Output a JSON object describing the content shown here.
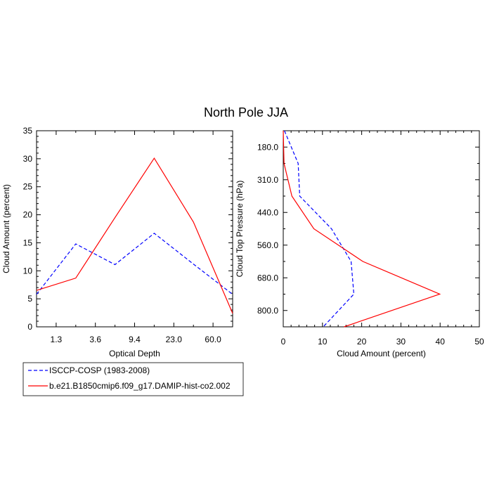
{
  "title": "North Pole JJA",
  "chart_data": [
    {
      "type": "line",
      "xlabel": "Optical Depth",
      "ylabel": "Cloud Amount (percent)",
      "x_tick_labels": [
        "1.3",
        "3.6",
        "9.4",
        "23.0",
        "60.0"
      ],
      "y_ticks": [
        0,
        5,
        10,
        15,
        20,
        25,
        30,
        35
      ],
      "ylim": [
        0,
        35
      ],
      "series": [
        {
          "name": "ISCCP-COSP (1983-2008)",
          "color": "#0000ff",
          "dash": "dashed",
          "values": [
            5.8,
            14.8,
            11.1,
            16.7,
            11.2,
            5.8
          ]
        },
        {
          "name": "b.e21.B1850cmip6.f09_g17.DAMIP-hist-co2.002",
          "color": "#ff0000",
          "dash": "solid",
          "values": [
            6.5,
            8.7,
            19.5,
            30.1,
            18.7,
            2.4
          ]
        }
      ]
    },
    {
      "type": "line",
      "xlabel": "Cloud Amount (percent)",
      "ylabel": "Cloud Top Pressure (hPa)",
      "x_ticks": [
        0,
        10,
        20,
        30,
        40,
        50
      ],
      "xlim": [
        0,
        50
      ],
      "y_tick_labels": [
        "180.0",
        "310.0",
        "440.0",
        "560.0",
        "680.0",
        "800.0"
      ],
      "series": [
        {
          "name": "ISCCP-COSP (1983-2008)",
          "color": "#0000ff",
          "dash": "dashed",
          "values": [
            0.3,
            3.8,
            4.2,
            12.3,
            17.3,
            18.0,
            10.2
          ]
        },
        {
          "name": "b.e21.B1850cmip6.f09_g17.DAMIP-hist-co2.002",
          "color": "#ff0000",
          "dash": "solid",
          "values": [
            0.0,
            0.2,
            2.2,
            7.8,
            20.3,
            39.9,
            15.5
          ]
        }
      ]
    }
  ],
  "legend": {
    "entries": [
      {
        "label": "ISCCP-COSP (1983-2008)",
        "color": "#0000ff",
        "dash": "dashed"
      },
      {
        "label": "b.e21.B1850cmip6.f09_g17.DAMIP-hist-co2.002",
        "color": "#ff0000",
        "dash": "solid"
      }
    ]
  }
}
